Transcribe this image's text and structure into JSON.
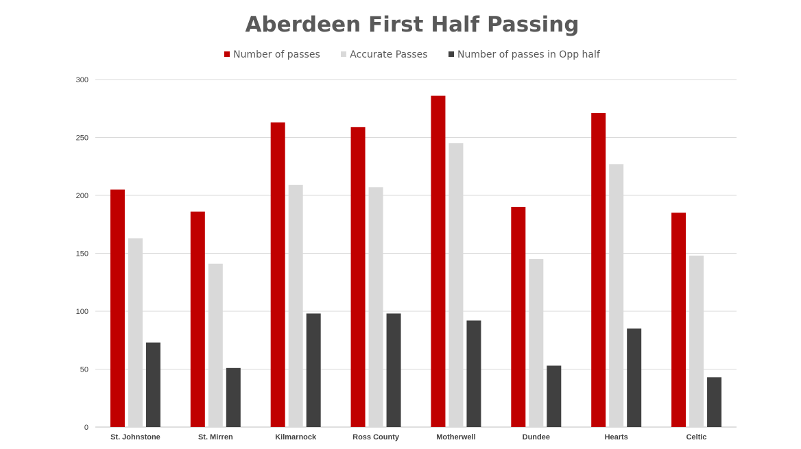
{
  "chart_data": {
    "type": "bar",
    "title": "Aberdeen First Half Passing",
    "xlabel": "",
    "ylabel": "",
    "categories": [
      "St. Johnstone",
      "St. Mirren",
      "Kilmarnock",
      "Ross County",
      "Motherwell",
      "Dundee",
      "Hearts",
      "Celtic"
    ],
    "series": [
      {
        "name": "Number of passes",
        "color": "#c00000",
        "values": [
          205,
          186,
          263,
          259,
          286,
          190,
          271,
          185
        ]
      },
      {
        "name": "Accurate Passes",
        "color": "#d9d9d9",
        "values": [
          163,
          141,
          209,
          207,
          245,
          145,
          227,
          148
        ]
      },
      {
        "name": "Number of passes in Opp half",
        "color": "#404040",
        "values": [
          73,
          51,
          98,
          98,
          92,
          53,
          85,
          43
        ]
      }
    ],
    "ylim": [
      0,
      300
    ],
    "yticks": [
      "0",
      "50",
      "100",
      "150",
      "200",
      "250",
      "300"
    ],
    "grid": true,
    "legend_position": "top"
  }
}
